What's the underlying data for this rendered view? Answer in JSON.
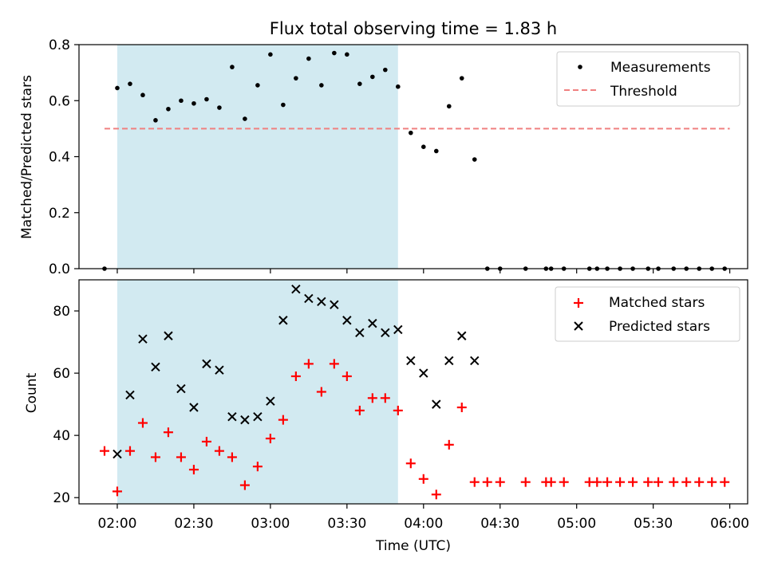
{
  "figure": {
    "title": "Flux total observing time = 1.83 h"
  },
  "colors": {
    "shade": "#add8e6",
    "threshold": "#f08080",
    "matched": "#ff0000",
    "predicted": "#000000",
    "measurement": "#000000"
  },
  "chart_data": [
    {
      "type": "scatter",
      "ylabel": "Matched/Predicted stars",
      "xlabel": "",
      "xlim": [
        "01:45",
        "06:07"
      ],
      "ylim": [
        0,
        0.8
      ],
      "yticks": [
        0.0,
        0.2,
        0.4,
        0.6,
        0.8
      ],
      "ytick_labels": [
        "0.0",
        "0.2",
        "0.4",
        "0.6",
        "0.8"
      ],
      "shaded_span": [
        "02:00",
        "03:50"
      ],
      "legend": {
        "placement": "top-right",
        "entries": [
          "Measurements",
          "Threshold"
        ]
      },
      "threshold": {
        "name": "Threshold",
        "y": 0.5,
        "x": [
          "01:55",
          "06:00"
        ],
        "style": "dashed"
      },
      "series": [
        {
          "name": "Measurements",
          "marker": "dot",
          "x": [
            "01:55",
            "02:00",
            "02:05",
            "02:10",
            "02:15",
            "02:20",
            "02:25",
            "02:30",
            "02:35",
            "02:40",
            "02:45",
            "02:50",
            "02:55",
            "03:00",
            "03:05",
            "03:10",
            "03:15",
            "03:20",
            "03:25",
            "03:30",
            "03:35",
            "03:40",
            "03:45",
            "03:50",
            "03:55",
            "04:00",
            "04:05",
            "04:10",
            "04:15",
            "04:20",
            "04:25",
            "04:30",
            "04:40",
            "04:48",
            "04:50",
            "04:55",
            "05:05",
            "05:08",
            "05:12",
            "05:17",
            "05:22",
            "05:28",
            "05:32",
            "05:38",
            "05:43",
            "05:48",
            "05:53",
            "05:58"
          ],
          "y": [
            0.0,
            0.645,
            0.66,
            0.62,
            0.53,
            0.57,
            0.6,
            0.59,
            0.605,
            0.575,
            0.72,
            0.535,
            0.655,
            0.765,
            0.585,
            0.68,
            0.75,
            0.655,
            0.77,
            0.765,
            0.66,
            0.685,
            0.71,
            0.65,
            0.485,
            0.435,
            0.42,
            0.58,
            0.68,
            0.39,
            0.0,
            0.0,
            0.0,
            0.0,
            0.0,
            0.0,
            0.0,
            0.0,
            0.0,
            0.0,
            0.0,
            0.0,
            0.0,
            0.0,
            0.0,
            0.0,
            0.0,
            0.0
          ]
        }
      ]
    },
    {
      "type": "scatter",
      "ylabel": "Count",
      "xlabel": "Time (UTC)",
      "xlim": [
        "01:45",
        "06:07"
      ],
      "ylim": [
        18,
        90
      ],
      "yticks": [
        20,
        40,
        60,
        80
      ],
      "ytick_labels": [
        "20",
        "40",
        "60",
        "80"
      ],
      "xticks": [
        "02:00",
        "02:30",
        "03:00",
        "03:30",
        "04:00",
        "04:30",
        "05:00",
        "05:30",
        "06:00"
      ],
      "shaded_span": [
        "02:00",
        "03:50"
      ],
      "legend": {
        "placement": "top-right",
        "entries": [
          "Matched stars",
          "Predicted stars"
        ]
      },
      "series": [
        {
          "name": "Matched stars",
          "marker": "plus",
          "x": [
            "01:55",
            "02:00",
            "02:05",
            "02:10",
            "02:15",
            "02:20",
            "02:25",
            "02:30",
            "02:35",
            "02:40",
            "02:45",
            "02:50",
            "02:55",
            "03:00",
            "03:05",
            "03:10",
            "03:15",
            "03:20",
            "03:25",
            "03:30",
            "03:35",
            "03:40",
            "03:45",
            "03:50",
            "03:55",
            "04:00",
            "04:05",
            "04:10",
            "04:15",
            "04:20",
            "04:25",
            "04:30",
            "04:40",
            "04:48",
            "04:50",
            "04:55",
            "05:05",
            "05:08",
            "05:12",
            "05:17",
            "05:22",
            "05:28",
            "05:32",
            "05:38",
            "05:43",
            "05:48",
            "05:53",
            "05:58"
          ],
          "y": [
            35,
            22,
            35,
            44,
            33,
            41,
            33,
            29,
            38,
            35,
            33,
            24,
            30,
            39,
            45,
            59,
            63,
            54,
            63,
            59,
            48,
            52,
            52,
            48,
            31,
            26,
            21,
            37,
            49,
            25,
            25,
            25,
            25,
            25,
            25,
            25,
            25,
            25,
            25,
            25,
            25,
            25,
            25,
            25,
            25,
            25,
            25,
            25
          ]
        },
        {
          "name": "Predicted stars",
          "marker": "x",
          "x": [
            "02:00",
            "02:05",
            "02:10",
            "02:15",
            "02:20",
            "02:25",
            "02:30",
            "02:35",
            "02:40",
            "02:45",
            "02:50",
            "02:55",
            "03:00",
            "03:05",
            "03:10",
            "03:15",
            "03:20",
            "03:25",
            "03:30",
            "03:35",
            "03:40",
            "03:45",
            "03:50",
            "03:55",
            "04:00",
            "04:05",
            "04:10",
            "04:15",
            "04:20"
          ],
          "y": [
            34,
            53,
            71,
            62,
            72,
            55,
            49,
            63,
            61,
            46,
            45,
            46,
            51,
            77,
            87,
            84,
            83,
            82,
            77,
            73,
            76,
            73,
            74,
            64,
            60,
            50,
            64,
            72,
            64
          ]
        }
      ]
    }
  ]
}
